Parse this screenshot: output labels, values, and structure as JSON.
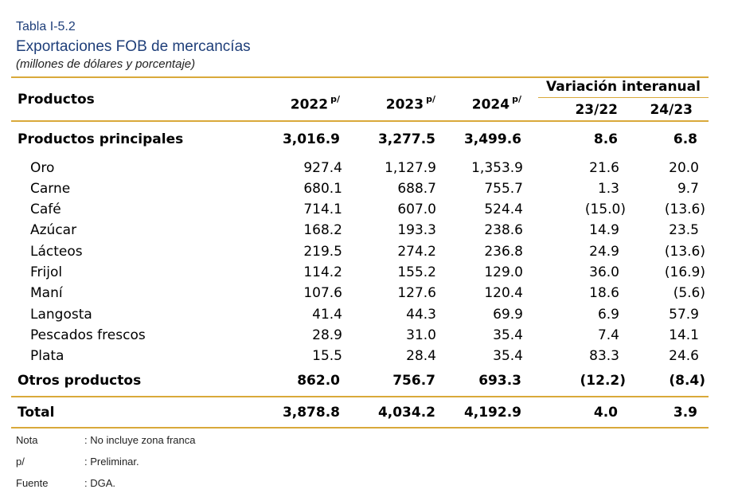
{
  "header": {
    "tag": "Tabla I-5.2",
    "title": "Exportaciones FOB de mercancías",
    "subtitle": "(millones de dólares y porcentaje)"
  },
  "table": {
    "col_products": "Productos",
    "col_2022": "2022",
    "col_2023": "2023",
    "col_2024": "2024",
    "sup": "p/",
    "variation_title": "Variación interanual",
    "var_23_22": "23/22",
    "var_24_23": "24/23",
    "principal": {
      "name": "Productos principales",
      "v2022": "3,016.9",
      "v2023": "3,277.5",
      "v2024": "3,499.6",
      "var1": "8.6",
      "var2": "6.8"
    },
    "items": [
      {
        "name": "Oro",
        "v2022": "927.4",
        "v2023": "1,127.9",
        "v2024": "1,353.9",
        "var1": "21.6",
        "var2": "20.0"
      },
      {
        "name": "Carne",
        "v2022": "680.1",
        "v2023": "688.7",
        "v2024": "755.7",
        "var1": "1.3",
        "var2": "9.7"
      },
      {
        "name": "Café",
        "v2022": "714.1",
        "v2023": "607.0",
        "v2024": "524.4",
        "var1": "(15.0)",
        "var2": "(13.6)"
      },
      {
        "name": "Azúcar",
        "v2022": "168.2",
        "v2023": "193.3",
        "v2024": "238.6",
        "var1": "14.9",
        "var2": "23.5"
      },
      {
        "name": "Lácteos",
        "v2022": "219.5",
        "v2023": "274.2",
        "v2024": "236.8",
        "var1": "24.9",
        "var2": "(13.6)"
      },
      {
        "name": "Frijol",
        "v2022": "114.2",
        "v2023": "155.2",
        "v2024": "129.0",
        "var1": "36.0",
        "var2": "(16.9)"
      },
      {
        "name": "Maní",
        "v2022": "107.6",
        "v2023": "127.6",
        "v2024": "120.4",
        "var1": "18.6",
        "var2": "(5.6)"
      },
      {
        "name": "Langosta",
        "v2022": "41.4",
        "v2023": "44.3",
        "v2024": "69.9",
        "var1": "6.9",
        "var2": "57.9"
      },
      {
        "name": "Pescados frescos",
        "v2022": "28.9",
        "v2023": "31.0",
        "v2024": "35.4",
        "var1": "7.4",
        "var2": "14.1"
      },
      {
        "name": "Plata",
        "v2022": "15.5",
        "v2023": "28.4",
        "v2024": "35.4",
        "var1": "83.3",
        "var2": "24.6"
      }
    ],
    "otros": {
      "name": "Otros productos",
      "v2022": "862.0",
      "v2023": "756.7",
      "v2024": "693.3",
      "var1": "(12.2)",
      "var2": "(8.4)"
    },
    "total": {
      "name": "Total",
      "v2022": "3,878.8",
      "v2023": "4,034.2",
      "v2024": "4,192.9",
      "var1": "4.0",
      "var2": "3.9"
    }
  },
  "notes": [
    {
      "label": "Nota",
      "text": ": No incluye zona franca"
    },
    {
      "label": "p/",
      "text": ": Preliminar."
    },
    {
      "label": "Fuente",
      "text": ": DGA."
    }
  ],
  "colors": {
    "title": "#1f3f7a",
    "rule": "#d9a93a"
  }
}
